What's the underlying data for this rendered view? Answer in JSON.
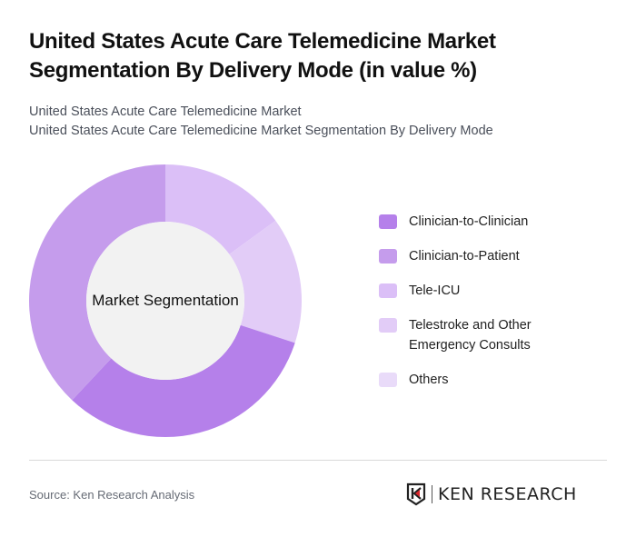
{
  "header": {
    "title": "United States Acute Care Telemedicine Market Segmentation By Delivery Mode (in value %)",
    "subtitle_line1": "United States Acute Care Telemedicine Market",
    "subtitle_line2": "United States Acute Care Telemedicine Market Segmentation By Delivery Mode"
  },
  "chart": {
    "center_label": "Market Segmentation"
  },
  "legend": {
    "items": [
      {
        "label": "Clinician-to-Clinician",
        "color": "#b580ea"
      },
      {
        "label": "Clinician-to-Patient",
        "color": "#c59cec"
      },
      {
        "label": "Tele-ICU",
        "color": "#dbbff7"
      },
      {
        "label": "Telestroke and Other Emergency Consults",
        "color": "#e2ccf7"
      },
      {
        "label": "Others",
        "color": "#e9dbf9"
      }
    ]
  },
  "footer": {
    "source": "Source: Ken Research Analysis",
    "logo_text": "KEN RESEARCH"
  },
  "chart_data": {
    "type": "pie",
    "variant": "donut",
    "title": "United States Acute Care Telemedicine Market Segmentation By Delivery Mode (in value %)",
    "center_label": "Market Segmentation",
    "categories": [
      "Clinician-to-Clinician",
      "Clinician-to-Patient",
      "Tele-ICU",
      "Telestroke and Other Emergency Consults",
      "Others"
    ],
    "values": [
      32,
      38,
      15,
      15,
      0
    ],
    "colors": [
      "#b580ea",
      "#c59cec",
      "#dbbff7",
      "#e2ccf7",
      "#e9dbf9"
    ],
    "legend_position": "right"
  }
}
